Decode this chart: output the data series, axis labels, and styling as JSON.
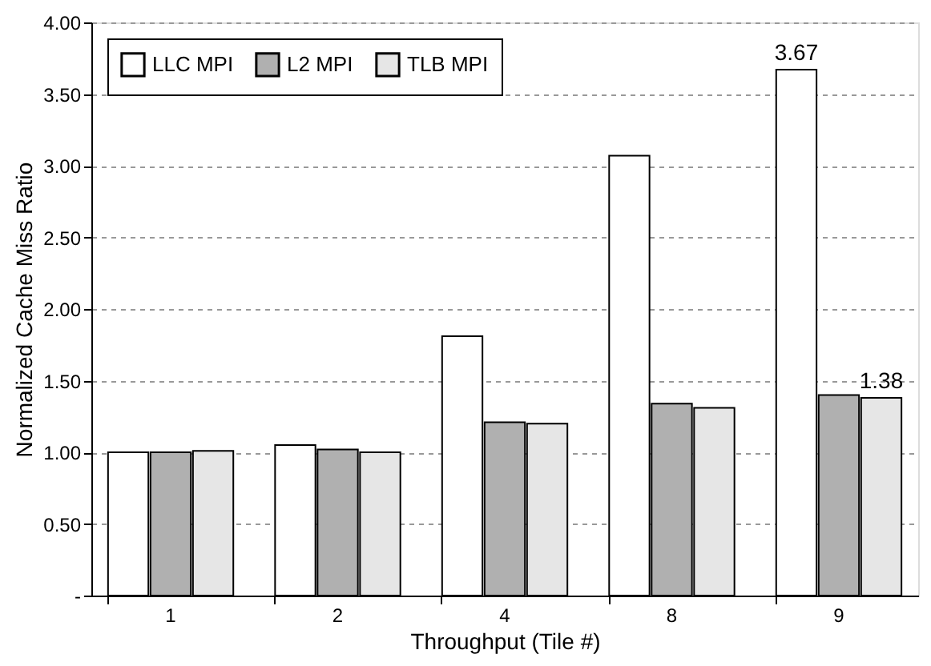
{
  "chart_data": {
    "type": "bar",
    "xlabel": "Throughput (Tile #)",
    "ylabel": "Normalized Cache Miss Ratio",
    "categories": [
      "1",
      "2",
      "4",
      "8",
      "9"
    ],
    "series": [
      {
        "name": "LLC MPI",
        "color": "#ffffff",
        "values": [
          1.0,
          1.05,
          1.81,
          3.07,
          3.67
        ],
        "value_labels": [
          null,
          null,
          null,
          null,
          "3.67"
        ]
      },
      {
        "name": "L2 MPI",
        "color": "#b0b0b0",
        "values": [
          1.0,
          1.02,
          1.21,
          1.34,
          1.4
        ]
      },
      {
        "name": "TLB MPI",
        "color": "#e6e6e6",
        "values": [
          1.01,
          1.0,
          1.2,
          1.31,
          1.38
        ],
        "value_labels": [
          null,
          null,
          null,
          null,
          "1.38"
        ]
      }
    ],
    "ylim": [
      0,
      4
    ],
    "yticks": [
      {
        "value": 0,
        "label": "-"
      },
      {
        "value": 0.5,
        "label": "0.50"
      },
      {
        "value": 1,
        "label": "1.00"
      },
      {
        "value": 1.5,
        "label": "1.50"
      },
      {
        "value": 2,
        "label": "2.00"
      },
      {
        "value": 2.5,
        "label": "2.50"
      },
      {
        "value": 3,
        "label": "3.00"
      },
      {
        "value": 3.5,
        "label": "3.50"
      },
      {
        "value": 4,
        "label": "4.00"
      }
    ],
    "grid": "y",
    "legend": "top left"
  }
}
